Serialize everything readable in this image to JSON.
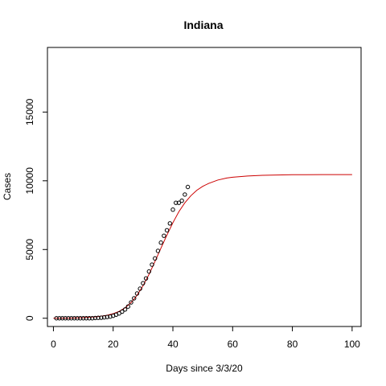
{
  "chart_data": {
    "type": "scatter",
    "title": "Indiana",
    "xlabel": "Days since 3/3/20",
    "ylabel": "Cases",
    "xlim": [
      -2,
      103
    ],
    "ylim": [
      -600,
      19700
    ],
    "xticks": [
      0,
      20,
      40,
      60,
      80,
      100
    ],
    "yticks": [
      0,
      5000,
      10000,
      15000
    ],
    "grid": false,
    "legend": "none",
    "colors": {
      "points": "#000000",
      "fit_line": "#cc0000",
      "axes": "#000000"
    },
    "series": [
      {
        "type": "scatter",
        "x": [
          1,
          2,
          3,
          4,
          5,
          6,
          7,
          8,
          9,
          10,
          11,
          12,
          13,
          14,
          15,
          16,
          17,
          18,
          19,
          20,
          21,
          22,
          23,
          24,
          25,
          26,
          27,
          28,
          29,
          30,
          31,
          32,
          33,
          34,
          35,
          36,
          37,
          38,
          39,
          40,
          41,
          42,
          43,
          44,
          45
        ],
        "y": [
          0,
          0,
          0,
          0,
          0,
          0,
          0,
          0,
          0,
          0,
          0,
          0,
          0,
          20,
          30,
          40,
          60,
          90,
          120,
          180,
          260,
          350,
          480,
          640,
          850,
          1150,
          1450,
          1800,
          2150,
          2550,
          2900,
          3400,
          3900,
          4350,
          4900,
          5500,
          6000,
          6400,
          6900,
          7900,
          8400,
          8400,
          8550,
          9000,
          9550
        ]
      },
      {
        "type": "line",
        "x": [
          0,
          5,
          10,
          15,
          18,
          20,
          22,
          24,
          26,
          28,
          30,
          32,
          34,
          36,
          38,
          40,
          42,
          44,
          46,
          48,
          50,
          52,
          55,
          58,
          60,
          65,
          70,
          80,
          90,
          100
        ],
        "y": [
          2,
          10,
          40,
          120,
          220,
          330,
          500,
          760,
          1140,
          1670,
          2360,
          3190,
          4130,
          5100,
          6050,
          6950,
          7750,
          8400,
          8910,
          9310,
          9600,
          9810,
          10050,
          10200,
          10260,
          10350,
          10400,
          10440,
          10450,
          10450
        ]
      }
    ]
  }
}
